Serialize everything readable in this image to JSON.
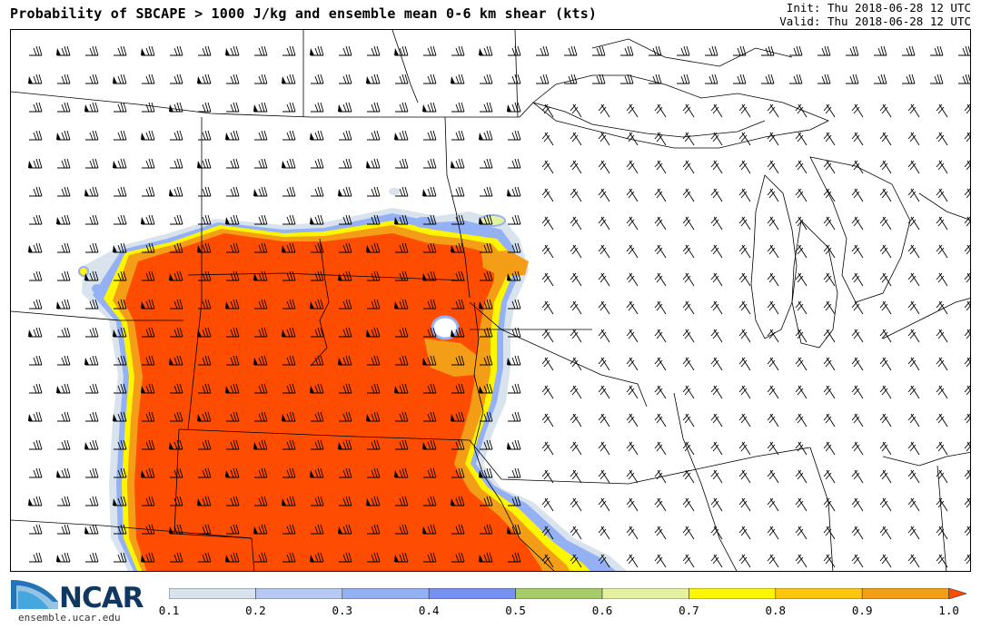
{
  "header": {
    "title": "Probability of SBCAPE > 1000 J/kg and ensemble mean 0-6 km shear (kts)",
    "init": "Init: Thu 2018-06-28 12 UTC",
    "valid": "Valid: Thu 2018-06-28 12 UTC"
  },
  "logo": {
    "name": "NCAR",
    "url": "ensemble.ucar.edu"
  },
  "colorbar": {
    "labels": [
      "0.1",
      "0.2",
      "0.3",
      "0.4",
      "0.5",
      "0.6",
      "0.7",
      "0.8",
      "0.9",
      "1.0"
    ],
    "colors": [
      "#d8e3ed",
      "#b6c8f4",
      "#95b1f5",
      "#7791f3",
      "#a6cc6a",
      "#e4f19f",
      "#fef600",
      "#fec60f",
      "#f49d16"
    ]
  },
  "map": {
    "probability_colors": {
      "low": "#d8e3ed",
      "mid": "#95b1f5",
      "light_green": "#e4f19f",
      "yellow": "#fef600",
      "orange": "#f49d16",
      "high": "#fe4d00"
    }
  }
}
